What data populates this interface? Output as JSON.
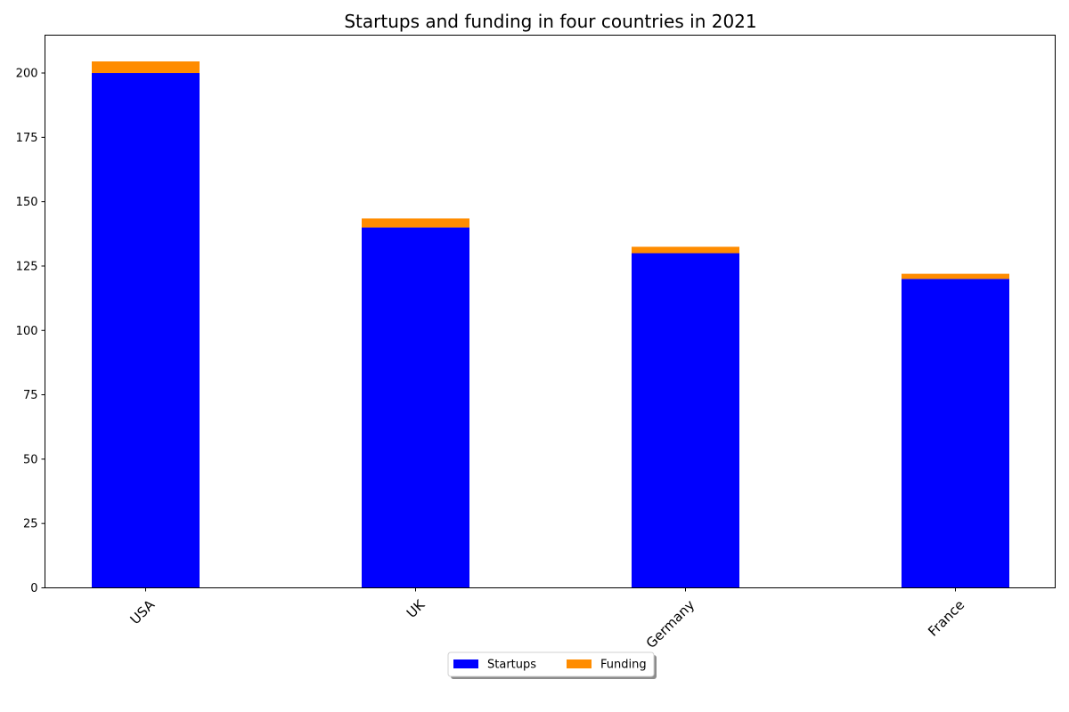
{
  "chart_data": {
    "type": "bar",
    "stacked": true,
    "title": "Startups and funding in four countries in 2021",
    "xlabel": "",
    "ylabel": "",
    "categories": [
      "USA",
      "UK",
      "Germany",
      "France"
    ],
    "series": [
      {
        "name": "Startups",
        "values": [
          200,
          140,
          130,
          120
        ],
        "color": "#0000ff"
      },
      {
        "name": "Funding",
        "values": [
          4.5,
          3.5,
          2.5,
          2
        ],
        "color": "#ff8c00"
      }
    ],
    "ylim": [
      0,
      214.7
    ],
    "yticks": [
      0,
      25,
      50,
      75,
      100,
      125,
      150,
      175,
      200
    ],
    "grid": false,
    "legend_position": "bottom-center"
  }
}
